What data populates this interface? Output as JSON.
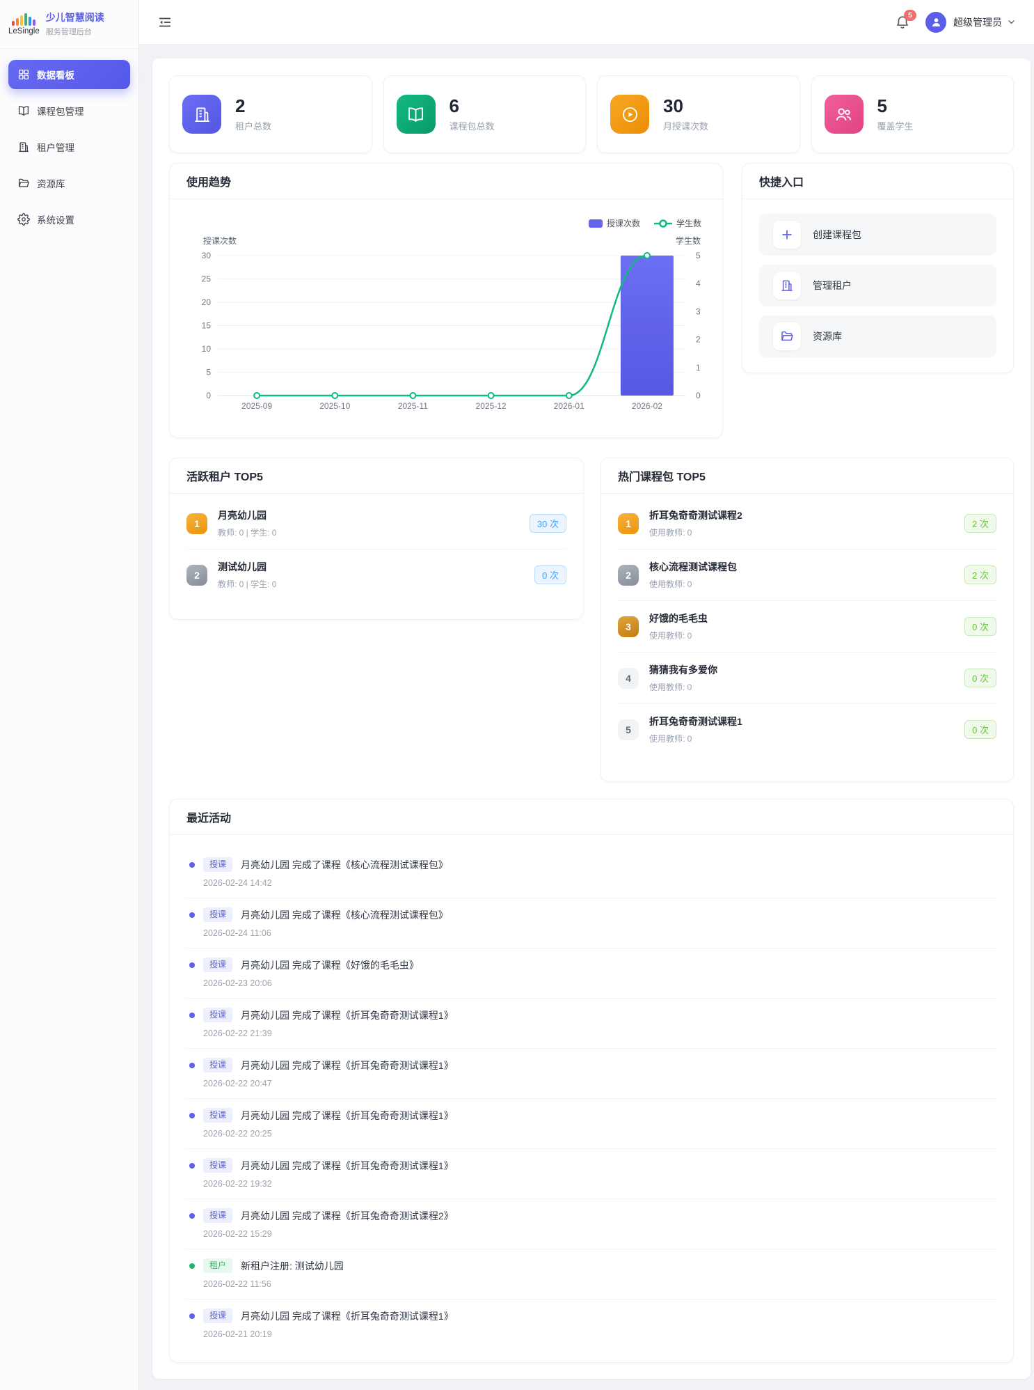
{
  "colors": {
    "accent": "#5b5fe9",
    "bar": "#6266e8",
    "line": "#10b981",
    "badge_red": "#f56c6c",
    "chip_blue": "#409eff",
    "chip_green": "#67c23a"
  },
  "sidebar": {
    "logo_text": "LeSingle",
    "app_title": "少儿智慧阅读",
    "app_subtitle": "服务管理后台",
    "items": [
      {
        "label": "数据看板",
        "icon": "dashboard-icon",
        "active": true
      },
      {
        "label": "课程包管理",
        "icon": "book-icon",
        "active": false
      },
      {
        "label": "租户管理",
        "icon": "building-icon",
        "active": false
      },
      {
        "label": "资源库",
        "icon": "folder-icon",
        "active": false
      },
      {
        "label": "系统设置",
        "icon": "gear-icon",
        "active": false
      }
    ]
  },
  "header": {
    "notification_count": "5",
    "user_name": "超级管理员"
  },
  "stats": [
    {
      "value": "2",
      "label": "租户总数",
      "icon": "building-icon"
    },
    {
      "value": "6",
      "label": "课程包总数",
      "icon": "book-icon"
    },
    {
      "value": "30",
      "label": "月授课次数",
      "icon": "play-icon"
    },
    {
      "value": "5",
      "label": "覆盖学生",
      "icon": "students-icon"
    }
  ],
  "usage_trend": {
    "title": "使用趋势"
  },
  "chart_data": {
    "type": "bar",
    "combo": "bar+line dual axis",
    "categories": [
      "2025-09",
      "2025-10",
      "2025-11",
      "2025-12",
      "2026-01",
      "2026-02"
    ],
    "series": [
      {
        "name": "授课次数",
        "type": "bar",
        "axis": "left",
        "color": "#6266e8",
        "values": [
          0,
          0,
          0,
          0,
          0,
          30
        ]
      },
      {
        "name": "学生数",
        "type": "line",
        "axis": "right",
        "color": "#10b981",
        "values": [
          0,
          0,
          0,
          0,
          0,
          5
        ]
      }
    ],
    "left_axis": {
      "name": "授课次数",
      "min": 0,
      "max": 30,
      "ticks": [
        0,
        5,
        10,
        15,
        20,
        25,
        30
      ]
    },
    "right_axis": {
      "name": "学生数",
      "min": 0,
      "max": 5,
      "ticks": [
        0,
        1,
        2,
        3,
        4,
        5
      ]
    },
    "legend": [
      "授课次数",
      "学生数"
    ],
    "legend_position": "top-right",
    "grid": true
  },
  "quick_entry": {
    "title": "快捷入口",
    "items": [
      {
        "label": "创建课程包",
        "icon": "plus-icon"
      },
      {
        "label": "管理租户",
        "icon": "building-icon"
      },
      {
        "label": "资源库",
        "icon": "folder-icon"
      }
    ]
  },
  "active_tenants": {
    "title": "活跃租户 TOP5",
    "items": [
      {
        "rank": "1",
        "name": "月亮幼儿园",
        "meta": "教师: 0 | 学生: 0",
        "badge": "30 次"
      },
      {
        "rank": "2",
        "name": "测试幼儿园",
        "meta": "教师: 0 | 学生: 0",
        "badge": "0 次"
      }
    ]
  },
  "hot_courses": {
    "title": "热门课程包 TOP5",
    "items": [
      {
        "rank": "1",
        "name": "折耳兔奇奇测试课程2",
        "meta": "使用教师: 0",
        "badge": "2 次"
      },
      {
        "rank": "2",
        "name": "核心流程测试课程包",
        "meta": "使用教师: 0",
        "badge": "2 次"
      },
      {
        "rank": "3",
        "name": "好饿的毛毛虫",
        "meta": "使用教师: 0",
        "badge": "0 次"
      },
      {
        "rank": "4",
        "name": "猜猜我有多爱你",
        "meta": "使用教师: 0",
        "badge": "0 次"
      },
      {
        "rank": "5",
        "name": "折耳兔奇奇测试课程1",
        "meta": "使用教师: 0",
        "badge": "0 次"
      }
    ]
  },
  "recent_activity": {
    "title": "最近活动",
    "items": [
      {
        "tag": "授课",
        "type": "lesson",
        "text": "月亮幼儿园 完成了课程《核心流程测试课程包》",
        "time": "2026-02-24 14:42"
      },
      {
        "tag": "授课",
        "type": "lesson",
        "text": "月亮幼儿园 完成了课程《核心流程测试课程包》",
        "time": "2026-02-24 11:06"
      },
      {
        "tag": "授课",
        "type": "lesson",
        "text": "月亮幼儿园 完成了课程《好饿的毛毛虫》",
        "time": "2026-02-23 20:06"
      },
      {
        "tag": "授课",
        "type": "lesson",
        "text": "月亮幼儿园 完成了课程《折耳兔奇奇测试课程1》",
        "time": "2026-02-22 21:39"
      },
      {
        "tag": "授课",
        "type": "lesson",
        "text": "月亮幼儿园 完成了课程《折耳兔奇奇测试课程1》",
        "time": "2026-02-22 20:47"
      },
      {
        "tag": "授课",
        "type": "lesson",
        "text": "月亮幼儿园 完成了课程《折耳兔奇奇测试课程1》",
        "time": "2026-02-22 20:25"
      },
      {
        "tag": "授课",
        "type": "lesson",
        "text": "月亮幼儿园 完成了课程《折耳兔奇奇测试课程1》",
        "time": "2026-02-22 19:32"
      },
      {
        "tag": "授课",
        "type": "lesson",
        "text": "月亮幼儿园 完成了课程《折耳兔奇奇测试课程2》",
        "time": "2026-02-22 15:29"
      },
      {
        "tag": "租户",
        "type": "tenant",
        "text": "新租户注册: 测试幼儿园",
        "time": "2026-02-22 11:56"
      },
      {
        "tag": "授课",
        "type": "lesson",
        "text": "月亮幼儿园 完成了课程《折耳兔奇奇测试课程1》",
        "time": "2026-02-21 20:19"
      }
    ]
  }
}
